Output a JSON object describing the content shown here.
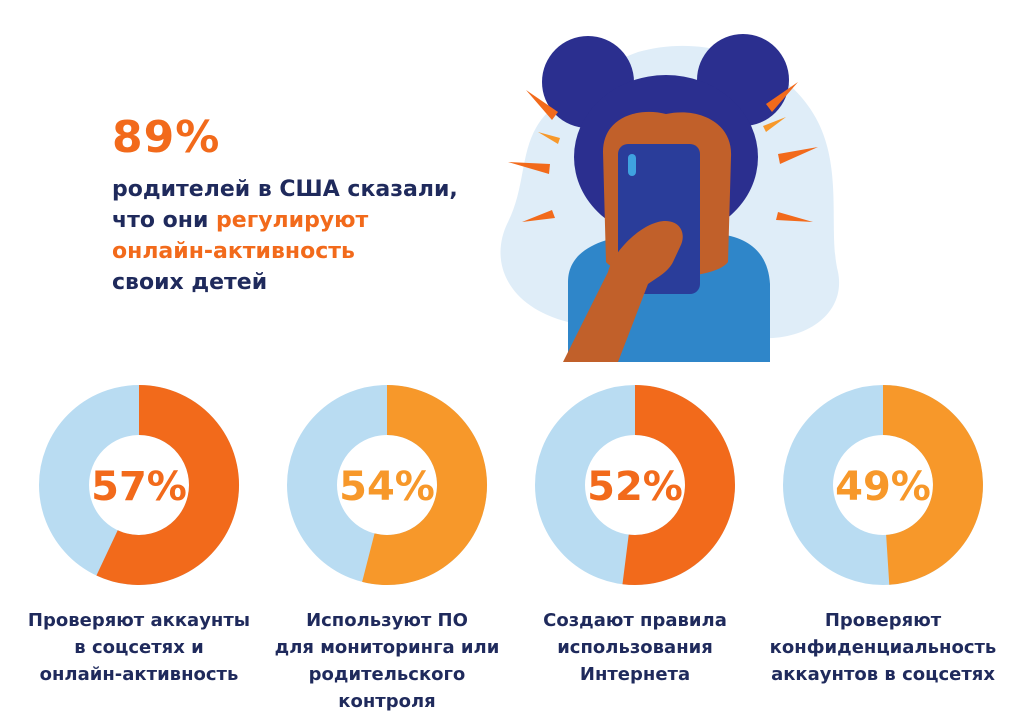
{
  "headline": {
    "stat": "89%",
    "line1": "родителей в США сказали,",
    "line2_plain": "что они ",
    "line2_accent": "регулируют",
    "line3_accent": "онлайн-активность",
    "line4": "своих детей"
  },
  "colors": {
    "navy": "#1f2a5c",
    "orange": "#f26a1b",
    "orange_light": "#f7982a",
    "ring_background": "#b9dcf2"
  },
  "chart_data": [
    {
      "type": "pie",
      "value": 57,
      "label_text": "57%",
      "color": "#f26a1b",
      "caption": "Проверяют аккаунты\nв соцсетях и\nонлайн-активность"
    },
    {
      "type": "pie",
      "value": 54,
      "label_text": "54%",
      "color": "#f7982a",
      "caption": "Используют ПО\nдля мониторинга или\nродительского контроля"
    },
    {
      "type": "pie",
      "value": 52,
      "label_text": "52%",
      "color": "#f26a1b",
      "caption": "Создают правила\nиспользования\nИнтернета"
    },
    {
      "type": "pie",
      "value": 49,
      "label_text": "49%",
      "color": "#f7982a",
      "caption": "Проверяют\nконфиденциальность\nаккаунтов в соцсетях"
    }
  ]
}
